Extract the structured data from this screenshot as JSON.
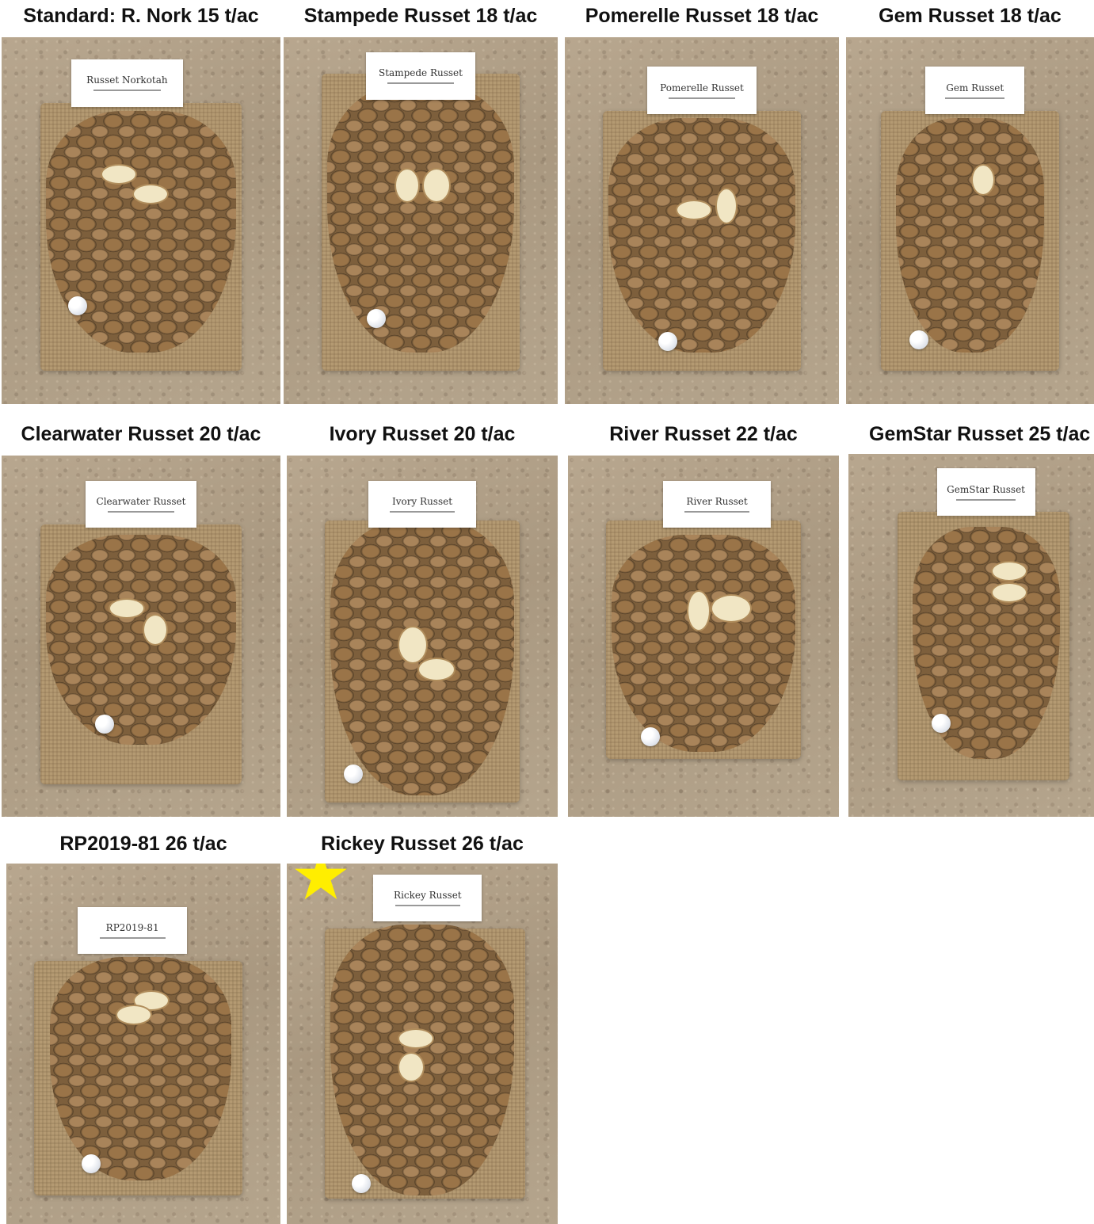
{
  "panels": [
    {
      "caption": "Standard: R. Nork 15 t/ac",
      "sign": "Russet Norkotah"
    },
    {
      "caption": "Stampede Russet 18 t/ac",
      "sign": "Stampede Russet"
    },
    {
      "caption": "Pomerelle Russet 18 t/ac",
      "sign": "Pomerelle Russet"
    },
    {
      "caption": "Gem Russet 18 t/ac",
      "sign": "Gem Russet"
    },
    {
      "caption": "Clearwater Russet 20 t/ac",
      "sign": "Clearwater Russet"
    },
    {
      "caption": "Ivory Russet 20 t/ac",
      "sign": "Ivory Russet"
    },
    {
      "caption": "River Russet 22 t/ac",
      "sign": "River Russet"
    },
    {
      "caption": "GemStar Russet 25 t/ac",
      "sign": "GemStar Russet"
    },
    {
      "caption": "RP2019-81 26 t/ac",
      "sign": "RP2019-81"
    },
    {
      "caption": "Rickey Russet 26 t/ac",
      "sign": "Rickey Russet"
    }
  ],
  "colors": {
    "star": "#ffee00"
  }
}
